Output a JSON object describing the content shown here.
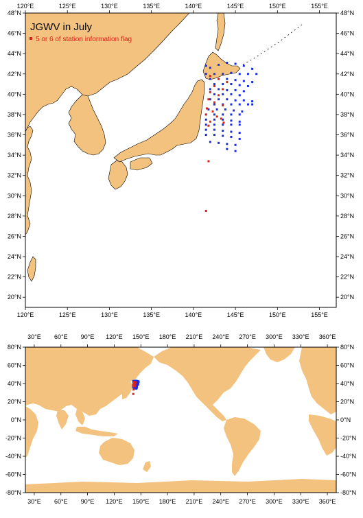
{
  "title": "JGWV in July",
  "legend": {
    "label": "5 or 6 of station information flag"
  },
  "colors": {
    "land": "#f2c27e",
    "ocean": "#ffffff",
    "normal": "#1a2ee6",
    "flagged": "#e0201a"
  },
  "regional_map": {
    "lon_range": [
      120,
      157
    ],
    "lat_range": [
      19,
      48
    ],
    "lon_ticks": [
      "120°E",
      "125°E",
      "130°E",
      "135°E",
      "140°E",
      "145°E",
      "150°E",
      "155°E"
    ],
    "lat_ticks": [
      "20°N",
      "22°N",
      "24°N",
      "26°N",
      "28°N",
      "30°N",
      "32°N",
      "34°N",
      "36°N",
      "38°N",
      "40°N",
      "42°N",
      "44°N",
      "46°N",
      "48°N"
    ]
  },
  "global_map": {
    "lon_range": [
      20,
      370
    ],
    "lat_range": [
      -80,
      80
    ],
    "lon_ticks": [
      "30°E",
      "60°E",
      "90°E",
      "120°E",
      "150°E",
      "180°E",
      "210°E",
      "240°E",
      "270°E",
      "300°E",
      "330°E",
      "360°E"
    ],
    "lat_ticks": [
      "80°N",
      "60°N",
      "40°N",
      "20°N",
      "0°N",
      "-20°N",
      "-40°N",
      "-60°N",
      "-80°N"
    ]
  },
  "chart_data": {
    "type": "scatter",
    "title": "JGWV in July",
    "xlim": [
      120,
      157
    ],
    "ylim": [
      19,
      48
    ],
    "series": [
      {
        "name": "",
        "points": [
          [
            141.5,
            42.8
          ],
          [
            142,
            42.6
          ],
          [
            143,
            42.9
          ],
          [
            144,
            43.1
          ],
          [
            145,
            43
          ],
          [
            146,
            42.8
          ],
          [
            147,
            42.5
          ],
          [
            141.5,
            42
          ],
          [
            142.5,
            42
          ],
          [
            143.5,
            42
          ],
          [
            144.5,
            42.1
          ],
          [
            145.5,
            42
          ],
          [
            146.5,
            42
          ],
          [
            147.5,
            42
          ],
          [
            142,
            41.5
          ],
          [
            143,
            41.5
          ],
          [
            144,
            41.5
          ],
          [
            145,
            41.4
          ],
          [
            146,
            41.3
          ],
          [
            147,
            41.2
          ],
          [
            142.5,
            41
          ],
          [
            143.5,
            41
          ],
          [
            144.5,
            41
          ],
          [
            145.5,
            40.9
          ],
          [
            146.5,
            40.8
          ],
          [
            142,
            40.5
          ],
          [
            143,
            40.5
          ],
          [
            144,
            40.4
          ],
          [
            145,
            40.4
          ],
          [
            146,
            40.3
          ],
          [
            142.5,
            40
          ],
          [
            143.5,
            40
          ],
          [
            144.5,
            40
          ],
          [
            145.5,
            39.9
          ],
          [
            142,
            39.5
          ],
          [
            143,
            39.5
          ],
          [
            144,
            39.5
          ],
          [
            145,
            39.4
          ],
          [
            146,
            39.4
          ],
          [
            147,
            39.3
          ],
          [
            142.5,
            39
          ],
          [
            143.5,
            39
          ],
          [
            144.5,
            39
          ],
          [
            145.5,
            39
          ],
          [
            146.5,
            39
          ],
          [
            147,
            39
          ],
          [
            141.8,
            38.5
          ],
          [
            142.8,
            38.5
          ],
          [
            143.8,
            38.5
          ],
          [
            144.8,
            38.4
          ],
          [
            145.8,
            38.3
          ],
          [
            141.5,
            38
          ],
          [
            142.5,
            38
          ],
          [
            143.5,
            38
          ],
          [
            144.5,
            38
          ],
          [
            145.5,
            38
          ],
          [
            141.5,
            37.5
          ],
          [
            142.5,
            37.5
          ],
          [
            143.5,
            37.5
          ],
          [
            144.5,
            37.4
          ],
          [
            145.5,
            37.3
          ],
          [
            141.5,
            37
          ],
          [
            142.5,
            37
          ],
          [
            143.5,
            37
          ],
          [
            144.5,
            37
          ],
          [
            145.5,
            37
          ],
          [
            141.5,
            36.5
          ],
          [
            142.5,
            36.5
          ],
          [
            143.5,
            36.4
          ],
          [
            144.5,
            36.3
          ],
          [
            145.5,
            36.2
          ],
          [
            141.5,
            36
          ],
          [
            142.5,
            36
          ],
          [
            143.5,
            35.9
          ],
          [
            144.5,
            35.8
          ],
          [
            145.5,
            35.6
          ],
          [
            142,
            35.3
          ],
          [
            143,
            35.2
          ],
          [
            144,
            35.1
          ],
          [
            145,
            35
          ],
          [
            144,
            34.6
          ],
          [
            145,
            34.4
          ]
        ]
      },
      {
        "name": "5 or 6 of station information flag",
        "points": [
          [
            142,
            41.8
          ],
          [
            143,
            41.5
          ],
          [
            144,
            41.2
          ],
          [
            142.5,
            40.8
          ],
          [
            143.5,
            40.5
          ],
          [
            142,
            40.2
          ],
          [
            143,
            39.9
          ],
          [
            141.8,
            39.5
          ],
          [
            142.5,
            39.2
          ],
          [
            143.5,
            38.9
          ],
          [
            141.6,
            38.6
          ],
          [
            142.3,
            38.3
          ],
          [
            141.5,
            38
          ],
          [
            142.8,
            37.8
          ],
          [
            143.3,
            37.6
          ],
          [
            143.6,
            37.2
          ],
          [
            142,
            37.3
          ],
          [
            141.8,
            36.9
          ],
          [
            141.8,
            33.4
          ],
          [
            141.5,
            28.5
          ]
        ]
      }
    ]
  }
}
